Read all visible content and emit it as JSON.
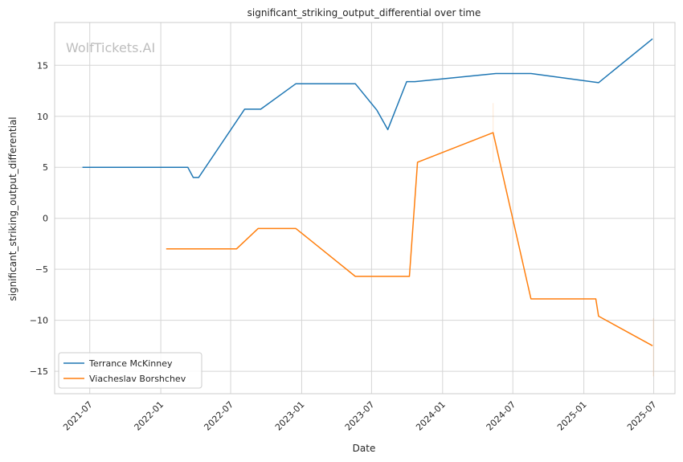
{
  "watermark": "WolfTickets.AI",
  "colors": {
    "series_0": "#1f77b4",
    "series_1": "#ff7f0e",
    "grid": "#d5d5d5",
    "frame": "#cccccc"
  },
  "chart_data": {
    "type": "line",
    "title": "significant_striking_output_differential over time",
    "xlabel": "Date",
    "ylabel": "significant_striking_output_differential",
    "xlim": [
      "2021-04-01",
      "2025-08-25"
    ],
    "ylim": [
      -17.2,
      19.2
    ],
    "x_ticks": [
      "2021-07",
      "2022-01",
      "2022-07",
      "2023-01",
      "2023-07",
      "2024-01",
      "2024-07",
      "2025-01",
      "2025-07"
    ],
    "y_ticks": [
      15,
      10,
      5,
      0,
      -5,
      -10,
      -15
    ],
    "y_tick_labels": [
      "15",
      "10",
      "5",
      "0",
      "−5",
      "−10",
      "−15"
    ],
    "grid": true,
    "legend_position": "lower-left",
    "series": [
      {
        "name": "Terrance McKinney",
        "points": [
          [
            "2021-06-12",
            5.0
          ],
          [
            "2022-03-12",
            5.0
          ],
          [
            "2022-03-26",
            4.0
          ],
          [
            "2022-04-09",
            4.0
          ],
          [
            "2022-08-06",
            10.7
          ],
          [
            "2022-09-17",
            10.7
          ],
          [
            "2022-12-17",
            13.2
          ],
          [
            "2023-05-20",
            13.2
          ],
          [
            "2023-07-15",
            10.6
          ],
          [
            "2023-08-12",
            8.7
          ],
          [
            "2023-09-30",
            13.4
          ],
          [
            "2023-10-21",
            13.4
          ],
          [
            "2024-05-18",
            14.2
          ],
          [
            "2024-08-17",
            14.2
          ],
          [
            "2025-02-08",
            13.3
          ],
          [
            "2025-06-28",
            17.6
          ]
        ]
      },
      {
        "name": "Viacheslav Borshchev",
        "points": [
          [
            "2022-01-15",
            -3.0
          ],
          [
            "2022-07-16",
            -3.0
          ],
          [
            "2022-09-10",
            -1.0
          ],
          [
            "2022-12-17",
            -1.0
          ],
          [
            "2023-05-20",
            -5.7
          ],
          [
            "2023-10-07",
            -5.7
          ],
          [
            "2023-10-28",
            5.5
          ],
          [
            "2024-05-11",
            8.4
          ],
          [
            "2024-08-17",
            -7.9
          ],
          [
            "2025-02-01",
            -7.9
          ],
          [
            "2025-02-08",
            -9.6
          ],
          [
            "2025-06-28",
            -12.5
          ]
        ]
      }
    ]
  }
}
